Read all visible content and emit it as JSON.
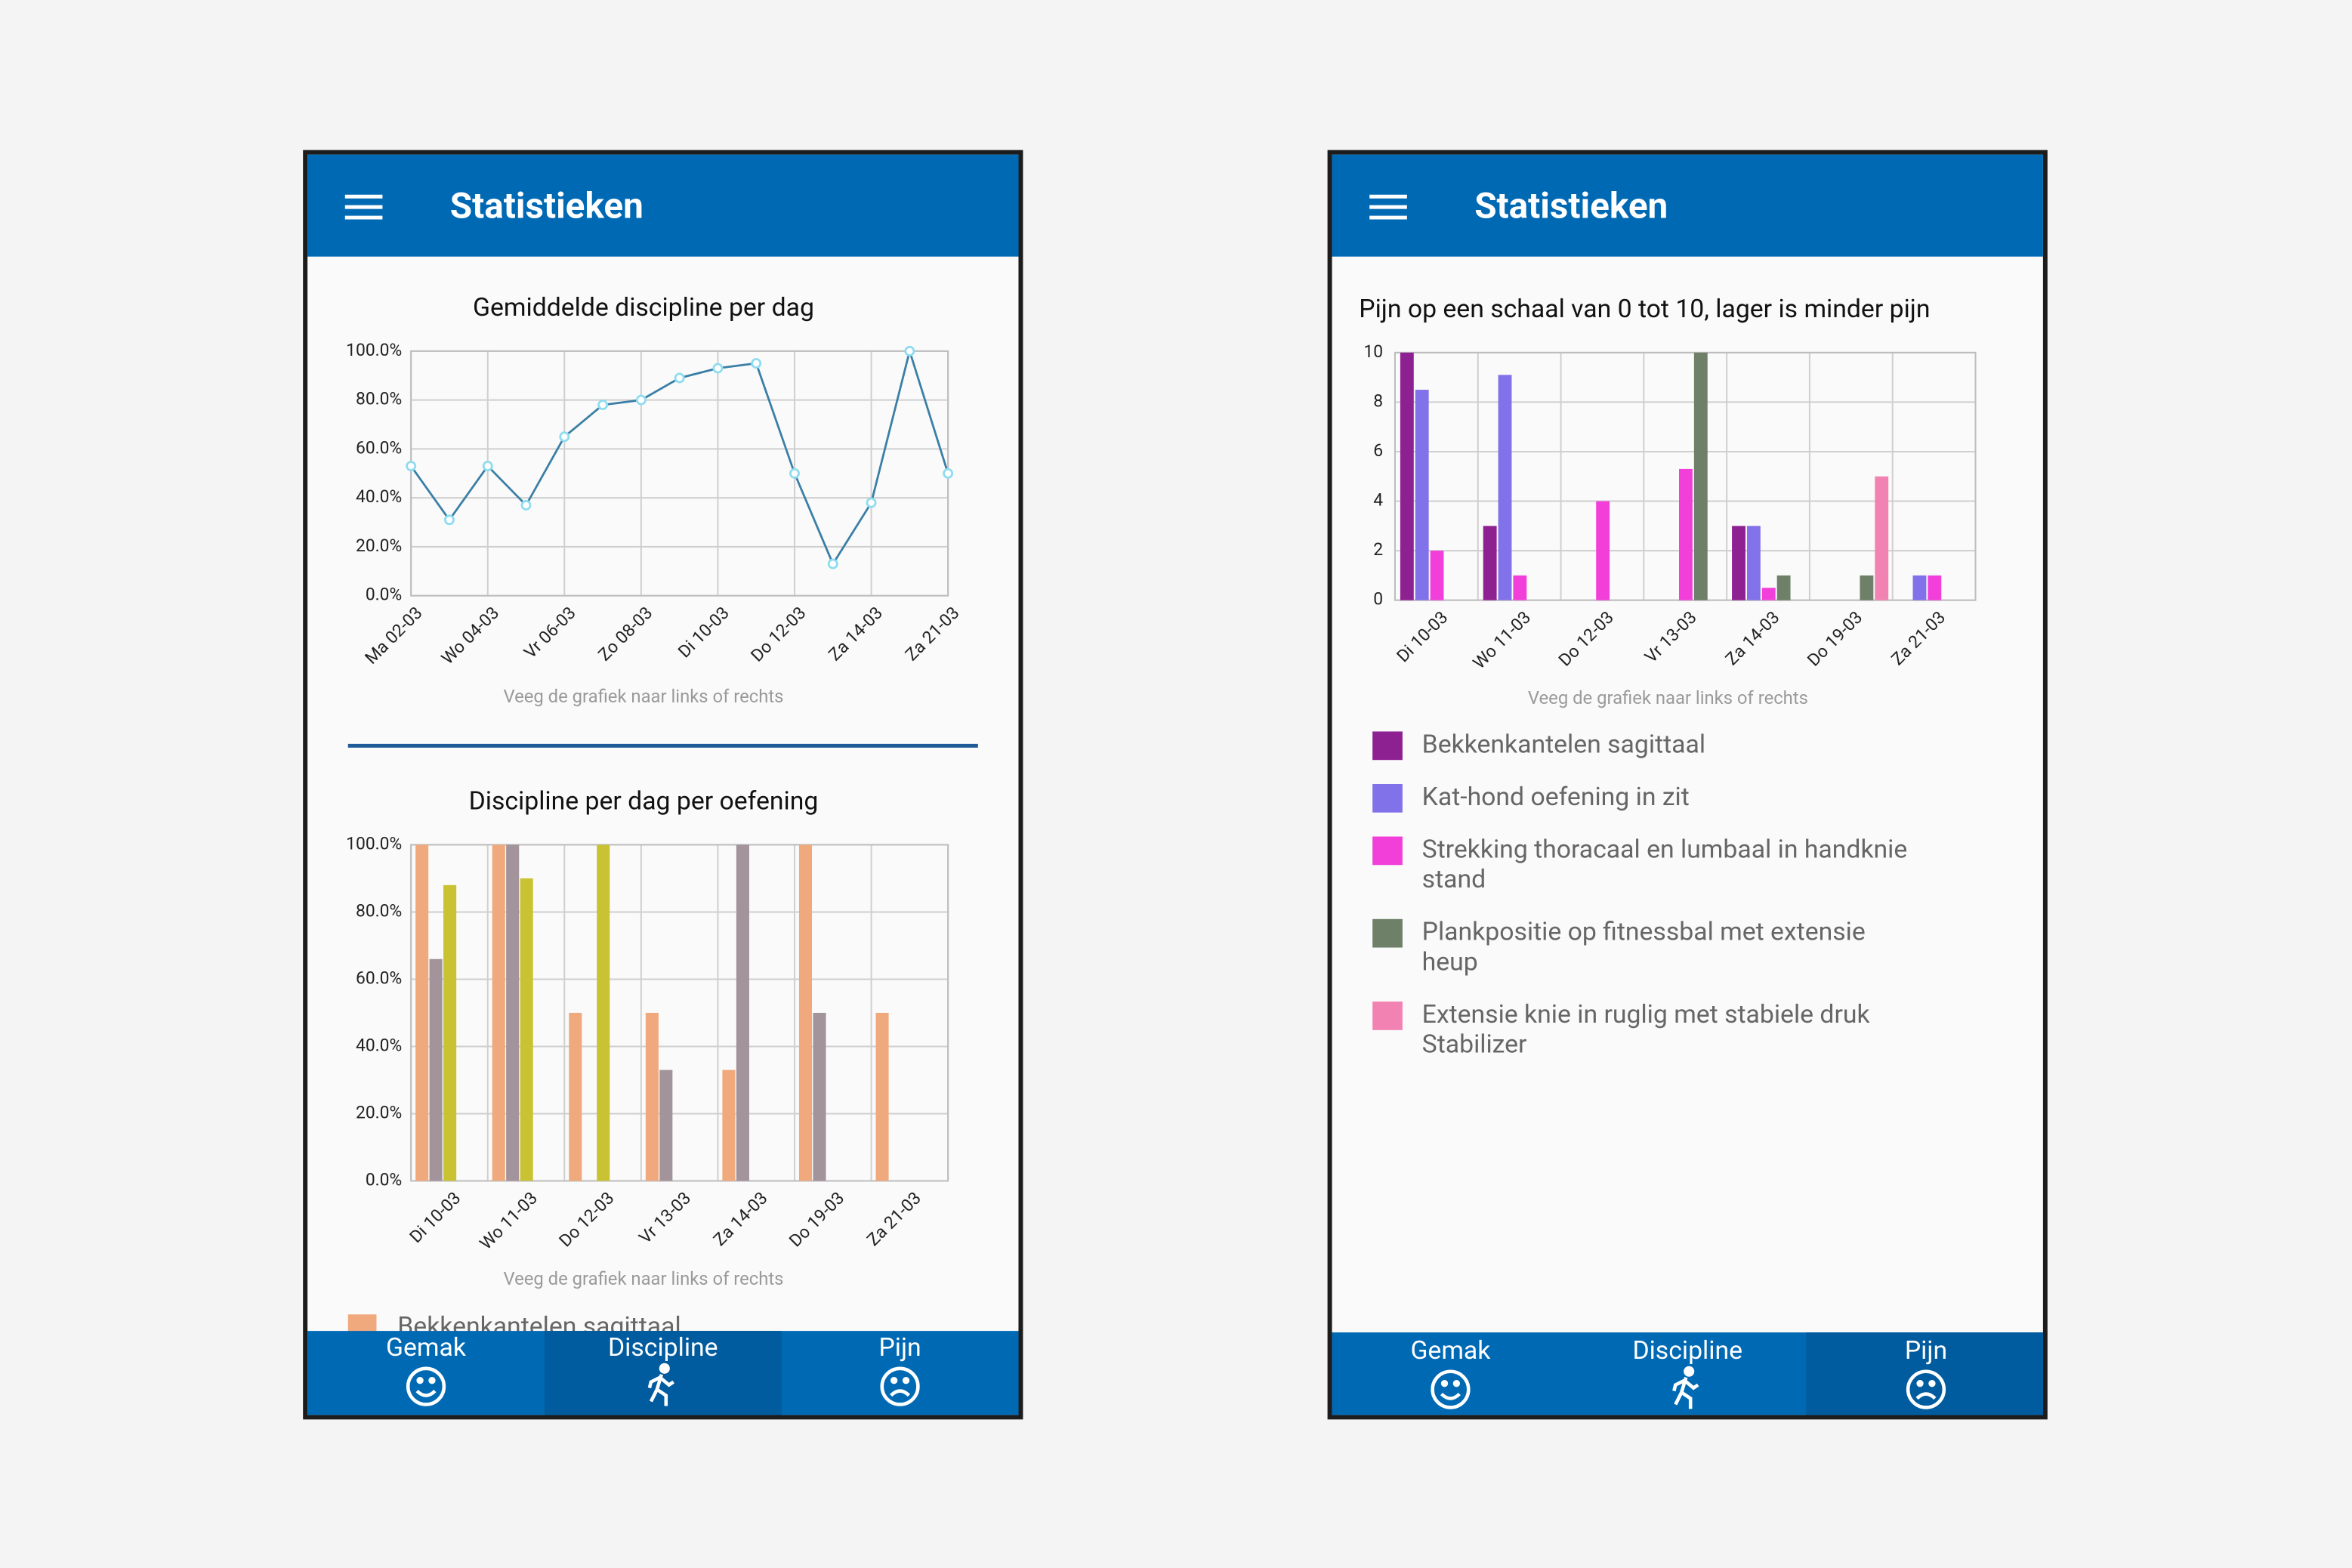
{
  "screens": [
    {
      "title": "Statistieken",
      "tabs": [
        "Gemak",
        "Discipline",
        "Pijn"
      ],
      "selected_tab": 1
    },
    {
      "title": "Statistieken",
      "tabs": [
        "Gemak",
        "Discipline",
        "Pijn"
      ],
      "selected_tab": 2
    }
  ],
  "chart_data": [
    {
      "type": "line",
      "title": "Gemiddelde discipline per dag",
      "annotation": "Veeg de grafiek naar links of rechts",
      "categories": [
        "Ma 02-03",
        null,
        "Wo 04-03",
        null,
        "Vr 06-03",
        null,
        "Zo 08-03",
        null,
        "Di 10-03",
        null,
        "Do 12-03",
        null,
        "Za 14-03",
        null,
        "Za 21-03"
      ],
      "values": [
        53,
        31,
        53,
        37,
        65,
        78,
        80,
        89,
        93,
        95,
        50,
        13,
        38,
        100,
        50
      ],
      "color": "#3b7fa6",
      "marker_color": "#8fdcef",
      "ylim": [
        0,
        100
      ],
      "yticks": [
        {
          "value": 0,
          "label": "0.0%"
        },
        {
          "value": 20,
          "label": "20.0%"
        },
        {
          "value": 40,
          "label": "40.0%"
        },
        {
          "value": 60,
          "label": "60.0%"
        },
        {
          "value": 80,
          "label": "80.0%"
        },
        {
          "value": 100,
          "label": "100.0%"
        }
      ],
      "grid": true
    },
    {
      "type": "bar",
      "title": "Discipline per dag per oefening",
      "annotation": "Veeg de grafiek naar links of rechts",
      "categories": [
        "Di 10-03",
        "Wo 11-03",
        "Do 12-03",
        "Vr 13-03",
        "Za 14-03",
        "Do 19-03",
        "Za 21-03"
      ],
      "series": [
        {
          "name": "Bekkenkantelen sagittaal",
          "color": "#f0a97c",
          "values": [
            100,
            100,
            50,
            50,
            33,
            100,
            50
          ]
        },
        {
          "color": "#a3939b",
          "values": [
            66,
            100,
            0,
            33,
            100,
            50,
            0
          ]
        },
        {
          "color": "#c9c232",
          "values": [
            88,
            90,
            100,
            0,
            0,
            0,
            0
          ]
        }
      ],
      "ylim": [
        0,
        100
      ],
      "yticks": [
        {
          "value": 0,
          "label": "0.0%"
        },
        {
          "value": 20,
          "label": "20.0%"
        },
        {
          "value": 40,
          "label": "40.0%"
        },
        {
          "value": 60,
          "label": "60.0%"
        },
        {
          "value": 80,
          "label": "80.0%"
        },
        {
          "value": 100,
          "label": "100.0%"
        }
      ],
      "grid": true
    },
    {
      "type": "bar",
      "title": "Pijn op een schaal van 0 tot 10, lager is minder pijn",
      "annotation": "Veeg de grafiek naar links of rechts",
      "categories": [
        "Di 10-03",
        "Wo 11-03",
        "Do 12-03",
        "Vr 13-03",
        "Za 14-03",
        "Do 19-03",
        "Za 21-03"
      ],
      "series": [
        {
          "name": "Bekkenkantelen sagittaal",
          "color": "#8e2191",
          "values": [
            10,
            3,
            0,
            0,
            3,
            0,
            0
          ]
        },
        {
          "name": "Kat-hond oefening in zit",
          "color": "#8272ea",
          "values": [
            8.5,
            9.1,
            0,
            0,
            3,
            0,
            1
          ]
        },
        {
          "name": "Strekking thoracaal en lumbaal in handknie stand",
          "color": "#f23fd9",
          "values": [
            2,
            1,
            4,
            5.3,
            0.5,
            0,
            1
          ]
        },
        {
          "name": "Plankpositie op fitnessbal met extensie heup",
          "color": "#6e8068",
          "values": [
            0,
            0,
            0,
            10,
            1,
            1,
            0
          ]
        },
        {
          "name": "Extensie knie in ruglig met stabiele druk Stabilizer",
          "color": "#f282b2",
          "values": [
            0,
            0,
            0,
            0,
            0,
            5,
            0
          ]
        }
      ],
      "ylim": [
        0,
        10
      ],
      "yticks": [
        0,
        2,
        4,
        6,
        8,
        10
      ],
      "grid": true
    }
  ]
}
